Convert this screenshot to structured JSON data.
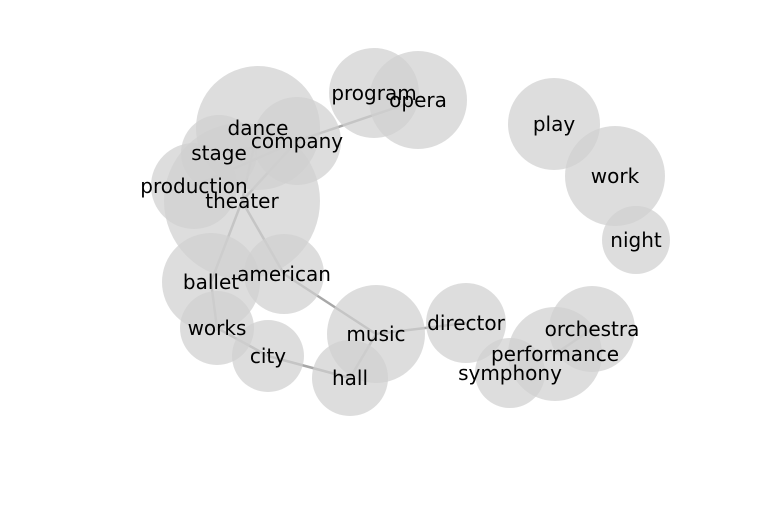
{
  "colors": {
    "bubble": "#d0d0d0",
    "edge": "#a8a8a8",
    "label": "#000000",
    "background": "#ffffff"
  },
  "nodes": [
    {
      "id": "program",
      "label": "program"
    },
    {
      "id": "opera",
      "label": "opera"
    },
    {
      "id": "dance",
      "label": "dance"
    },
    {
      "id": "company",
      "label": "company"
    },
    {
      "id": "stage",
      "label": "stage"
    },
    {
      "id": "production",
      "label": "production"
    },
    {
      "id": "theater",
      "label": "theater"
    },
    {
      "id": "american",
      "label": "american"
    },
    {
      "id": "ballet",
      "label": "ballet"
    },
    {
      "id": "works",
      "label": "works"
    },
    {
      "id": "city",
      "label": "city"
    },
    {
      "id": "music",
      "label": "music"
    },
    {
      "id": "hall",
      "label": "hall"
    },
    {
      "id": "director",
      "label": "director"
    },
    {
      "id": "play",
      "label": "play"
    },
    {
      "id": "work",
      "label": "work"
    },
    {
      "id": "night",
      "label": "night"
    },
    {
      "id": "orchestra",
      "label": "orchestra"
    },
    {
      "id": "performance",
      "label": "performance"
    },
    {
      "id": "symphony",
      "label": "symphony"
    }
  ],
  "edges": [
    [
      "opera",
      "company"
    ],
    [
      "company",
      "stage"
    ],
    [
      "company",
      "production"
    ],
    [
      "company",
      "theater"
    ],
    [
      "dance",
      "theater"
    ],
    [
      "theater",
      "ballet"
    ],
    [
      "theater",
      "american"
    ],
    [
      "american",
      "music"
    ],
    [
      "ballet",
      "works"
    ],
    [
      "works",
      "city"
    ],
    [
      "city",
      "hall"
    ],
    [
      "hall",
      "music"
    ],
    [
      "music",
      "director"
    ],
    [
      "orchestra",
      "performance"
    ]
  ]
}
